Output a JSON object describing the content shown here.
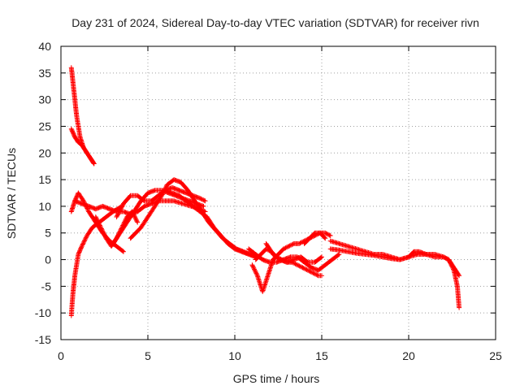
{
  "chart_data": {
    "type": "scatter",
    "title": "Day 231 of 2024, Sidereal Day-to-day VTEC variation (SDTVAR) for receiver rivn",
    "xlabel": "GPS time / hours",
    "ylabel": "SDTVAR / TECUs",
    "xlim": [
      0,
      25
    ],
    "ylim": [
      -15,
      40
    ],
    "x_ticks": [
      0,
      5,
      10,
      15,
      20,
      25
    ],
    "y_ticks": [
      -15,
      -10,
      -5,
      0,
      5,
      10,
      15,
      20,
      25,
      30,
      35,
      40
    ],
    "grid": true,
    "legend": "none",
    "marker": "+",
    "color": "#ff0000",
    "series": [
      {
        "name": "track-01",
        "x": [
          0.6,
          0.7,
          0.8,
          0.9,
          1.0,
          1.1,
          1.2,
          1.3,
          1.5,
          1.7,
          1.9
        ],
        "y": [
          36,
          33,
          30,
          27,
          25,
          23,
          22,
          21,
          20,
          19,
          18
        ]
      },
      {
        "name": "track-02",
        "x": [
          0.6,
          0.8,
          1.0,
          1.2,
          1.4,
          1.6,
          1.9
        ],
        "y": [
          24.5,
          23,
          22,
          21.5,
          20.5,
          19.5,
          18
        ]
      },
      {
        "name": "track-03",
        "x": [
          0.6,
          0.65,
          0.7,
          0.8,
          0.9,
          1.0,
          1.2,
          1.5,
          1.8,
          2.2,
          2.6,
          3.0,
          3.5
        ],
        "y": [
          -10.5,
          -8,
          -6,
          -3,
          -1,
          1,
          2.5,
          4.5,
          6,
          7,
          8,
          9,
          10
        ]
      },
      {
        "name": "track-04",
        "x": [
          0.6,
          0.8,
          1.0,
          1.3,
          1.6,
          2.0,
          2.4,
          2.8,
          3.2,
          3.6
        ],
        "y": [
          9,
          11,
          12.5,
          11,
          9,
          7,
          5,
          3.5,
          2.5,
          1.5
        ]
      },
      {
        "name": "track-05",
        "x": [
          0.8,
          1.2,
          1.6,
          2.0,
          2.4,
          2.8,
          3.2,
          3.6,
          4.0,
          4.4,
          4.8,
          5.2,
          5.6,
          6.0,
          6.5,
          7.0,
          7.5,
          8.0,
          8.3
        ],
        "y": [
          11,
          10.5,
          10,
          9.5,
          10,
          9.5,
          9,
          9,
          8.5,
          9,
          10,
          10.5,
          11,
          11,
          11,
          10.5,
          10,
          9.5,
          9
        ]
      },
      {
        "name": "track-06",
        "x": [
          2.0,
          2.3,
          2.6,
          2.9,
          3.2,
          3.5,
          3.8,
          4.1,
          4.4
        ],
        "y": [
          8,
          6,
          4,
          2.5,
          4,
          6,
          8,
          9,
          7
        ]
      },
      {
        "name": "track-07",
        "x": [
          3.0,
          3.4,
          3.8,
          4.2,
          4.6,
          5.0,
          5.4,
          5.8,
          6.2,
          6.6,
          7.0,
          7.4,
          7.8,
          8.2
        ],
        "y": [
          3,
          5,
          7,
          9,
          11,
          12.5,
          13,
          13,
          12.5,
          12,
          11.5,
          11,
          10.5,
          10
        ]
      },
      {
        "name": "track-08",
        "x": [
          3.2,
          3.6,
          4.0,
          4.4,
          4.8,
          5.2,
          5.6,
          6.0,
          6.4,
          6.8,
          7.2,
          7.6,
          8.0,
          8.3
        ],
        "y": [
          8,
          10.5,
          12,
          12,
          11,
          11,
          12,
          13,
          13.5,
          13,
          12.5,
          12,
          11.5,
          11
        ]
      },
      {
        "name": "track-09",
        "x": [
          4.0,
          4.3,
          4.6,
          4.9,
          5.2,
          5.5,
          5.8,
          6.1,
          6.5,
          6.9,
          7.3,
          7.7,
          8.1,
          8.5,
          8.9,
          9.3,
          9.7,
          10.1,
          10.5,
          10.9,
          11.3
        ],
        "y": [
          4,
          5,
          6,
          7.5,
          9,
          10.5,
          12,
          14,
          15,
          14.5,
          13,
          11,
          9,
          7,
          5.5,
          4,
          3,
          2,
          1.5,
          1,
          0.5
        ]
      },
      {
        "name": "track-10",
        "x": [
          6.0,
          6.4,
          6.8,
          7.2,
          7.6,
          8.0,
          8.4,
          8.8,
          9.2,
          9.6,
          10.0,
          10.4,
          10.8,
          11.2
        ],
        "y": [
          13,
          12.5,
          12,
          11,
          10,
          9,
          8,
          6,
          4.5,
          3,
          2,
          1.5,
          1,
          0.5
        ]
      },
      {
        "name": "track-11",
        "x": [
          11.0,
          11.3,
          11.6,
          11.9,
          12.2,
          12.5,
          12.8,
          13.1,
          13.4,
          13.7,
          14.0,
          14.3,
          14.6,
          14.9,
          15.2,
          15.5
        ],
        "y": [
          -1,
          -3,
          -6,
          -3,
          0,
          1,
          2,
          2.5,
          3,
          3,
          3.5,
          4,
          4.5,
          5,
          5,
          4.5
        ]
      },
      {
        "name": "track-12",
        "x": [
          10.8,
          11.2,
          11.6,
          12.0,
          12.4,
          12.8,
          13.2,
          13.6,
          14.0,
          14.4,
          14.8,
          15.2,
          15.6,
          16.0
        ],
        "y": [
          2,
          1,
          0,
          -0.5,
          -0.5,
          0,
          0.5,
          0.5,
          -0.5,
          -1.5,
          -2,
          -1,
          0,
          1
        ]
      },
      {
        "name": "track-13",
        "x": [
          11.2,
          11.5,
          11.8,
          12.1,
          12.4,
          12.7,
          13.0,
          13.3,
          13.6,
          13.9,
          14.2,
          14.5,
          14.8,
          15.0
        ],
        "y": [
          0,
          1,
          2,
          1.5,
          0.5,
          0,
          -0.5,
          -0.5,
          -1,
          -1.5,
          -2,
          -2.5,
          -3,
          -3
        ]
      },
      {
        "name": "track-14",
        "x": [
          11.8,
          12.2,
          12.6,
          13.0,
          13.4,
          13.8,
          14.2,
          14.6,
          15.0
        ],
        "y": [
          3,
          1,
          0,
          -0.5,
          0,
          0.5,
          -0.5,
          -0.5,
          0.5
        ]
      },
      {
        "name": "track-15",
        "x": [
          14.0,
          14.3,
          14.6,
          14.9,
          15.2
        ],
        "y": [
          3,
          4,
          5,
          5,
          4
        ]
      },
      {
        "name": "track-16",
        "x": [
          15.5,
          16.0,
          16.5,
          17.0,
          17.5,
          18.0,
          18.5,
          19.0,
          19.5,
          20.0,
          20.5,
          21.0,
          21.5,
          22.0,
          22.3,
          22.5,
          22.7,
          22.9
        ],
        "y": [
          3.5,
          3,
          2.5,
          2,
          1.5,
          1,
          1,
          0.5,
          0,
          0.5,
          1,
          1,
          0.5,
          0.5,
          0,
          -1,
          -2,
          -3
        ]
      },
      {
        "name": "track-17",
        "x": [
          15.5,
          16.0,
          16.5,
          17.0,
          17.5,
          18.0,
          18.5,
          19.0,
          19.5,
          20.0,
          20.3,
          20.6,
          21.0,
          21.5,
          22.0,
          22.3,
          22.6,
          22.8,
          22.9
        ],
        "y": [
          2,
          1.8,
          1.5,
          1.2,
          1,
          0.8,
          0.5,
          0.2,
          0,
          0.5,
          1.5,
          1.5,
          1,
          1,
          0.5,
          0,
          -2,
          -5,
          -9
        ]
      }
    ]
  }
}
